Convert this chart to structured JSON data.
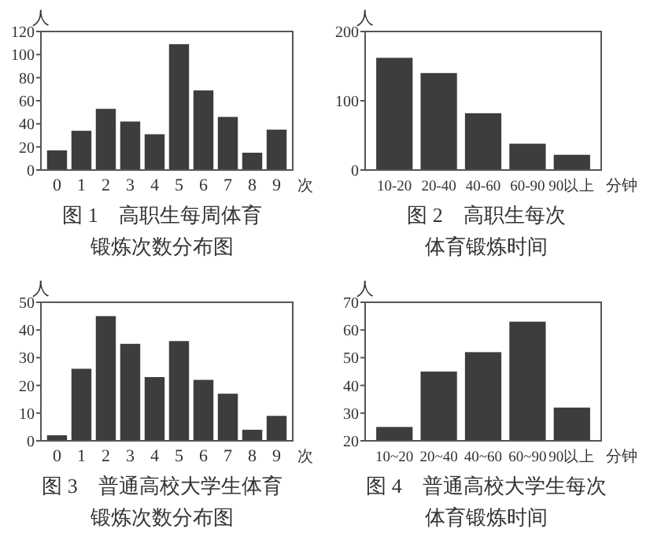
{
  "chart_data": [
    {
      "type": "bar",
      "title": "图 1　高职生每周体育",
      "subtitle": "锻炼次数分布图",
      "xlabel": "次",
      "ylabel": "人",
      "categories": [
        "0",
        "1",
        "2",
        "3",
        "4",
        "5",
        "6",
        "7",
        "8",
        "9"
      ],
      "values": [
        17,
        34,
        53,
        42,
        31,
        109,
        69,
        46,
        15,
        35
      ],
      "color": "#3d3d3d",
      "ylim": [
        0,
        120
      ],
      "yticks": [
        0,
        20,
        40,
        60,
        80,
        100,
        120
      ],
      "grid": false
    },
    {
      "type": "bar",
      "title": "图 2　高职生每次",
      "subtitle": "体育锻炼时间",
      "xlabel": "分钟",
      "ylabel": "人",
      "categories": [
        "10-20",
        "20-40",
        "40-60",
        "60-90",
        "90以上"
      ],
      "values": [
        162,
        140,
        82,
        38,
        22
      ],
      "color": "#3d3d3d",
      "ylim": [
        0,
        200
      ],
      "yticks": [
        0,
        100,
        200
      ],
      "grid": false
    },
    {
      "type": "bar",
      "title": "图 3　普通高校大学生体育",
      "subtitle": "锻炼次数分布图",
      "xlabel": "次",
      "ylabel": "人",
      "categories": [
        "0",
        "1",
        "2",
        "3",
        "4",
        "5",
        "6",
        "7",
        "8",
        "9"
      ],
      "values": [
        2,
        26,
        45,
        35,
        23,
        36,
        22,
        17,
        4,
        9
      ],
      "color": "#3d3d3d",
      "ylim": [
        0,
        50
      ],
      "yticks": [
        0,
        10,
        20,
        30,
        40,
        50
      ],
      "grid": false
    },
    {
      "type": "bar",
      "title": "图 4　普通高校大学生每次",
      "subtitle": "体育锻炼时间",
      "xlabel": "分钟",
      "ylabel": "人",
      "categories": [
        "10~20",
        "20~40",
        "40~60",
        "60~90",
        "90以上"
      ],
      "values": [
        25,
        45,
        52,
        63,
        32
      ],
      "color": "#3d3d3d",
      "ylim": [
        20,
        70
      ],
      "yticks": [
        20,
        30,
        40,
        50,
        60,
        70
      ],
      "grid": false
    }
  ]
}
